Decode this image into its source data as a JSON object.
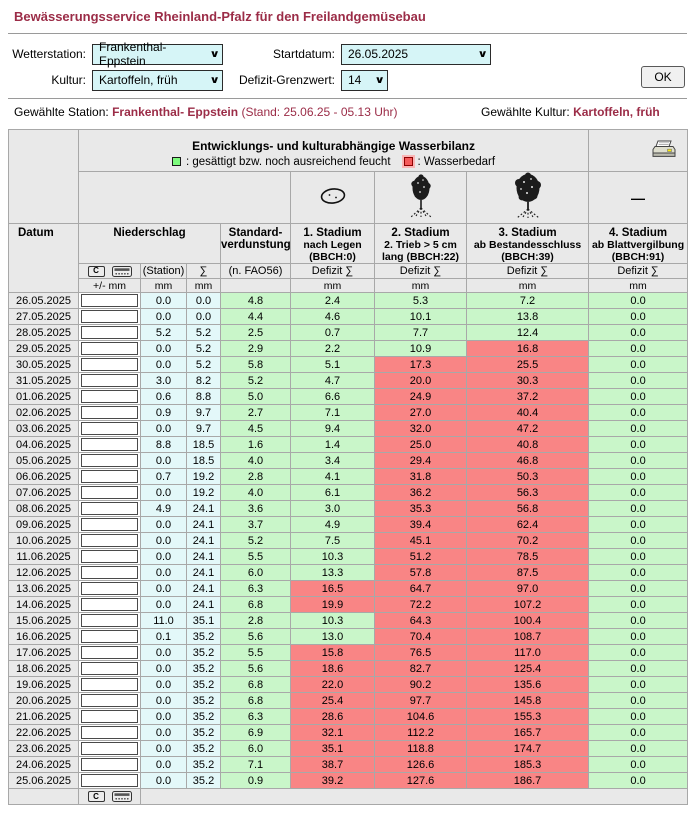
{
  "page": {
    "title": "Bewässerungsservice Rheinland-Pfalz für den Freilandgemüsebau"
  },
  "form": {
    "wetterstation_label": "Wetterstation:",
    "wetterstation_value": "Frankenthal- Eppstein",
    "startdatum_label": "Startdatum:",
    "startdatum_value": "26.05.2025",
    "kultur_label": "Kultur:",
    "kultur_value": "Kartoffeln, früh",
    "defizit_label": "Defizit-Grenzwert:",
    "defizit_value": "14",
    "ok_label": "OK"
  },
  "status": {
    "station_label": "Gewählte Station:",
    "station_value": "Frankenthal- Eppstein",
    "station_stand": "(Stand: 25.06.25 - 05.13 Uhr)",
    "kultur_label": "Gewählte Kultur:",
    "kultur_value": "Kartoffeln, früh"
  },
  "table": {
    "title": "Entwicklungs- und kulturabhängige Wasserbilanz",
    "legend_green": ": gesättigt bzw. noch ausreichend feucht",
    "legend_red": ": Wasserbedarf",
    "col_datum": "Datum",
    "col_niederschlag": "Niederschlag",
    "col_standard_l1": "Standard-",
    "col_standard_l2": "verdunstung",
    "stadium1": {
      "title": "1. Stadium",
      "sub": "nach Legen (BBCH:0)"
    },
    "stadium2": {
      "title": "2. Stadium",
      "sub": "2. Trieb > 5 cm lang (BBCH:22)"
    },
    "stadium3": {
      "title": "3. Stadium",
      "sub": "ab Bestandesschluss (BBCH:39)"
    },
    "stadium4": {
      "title": "4. Stadium",
      "sub": "ab Blattvergilbung (BBCH:91)"
    },
    "sub_station": "(Station)",
    "sub_sum": "∑",
    "sub_fao": "(n. FAO56)",
    "sub_defizit": "Defizit ∑",
    "unit_plusminus": "+/- mm",
    "unit_mm": "mm",
    "clear_button": "C",
    "dash": "—",
    "colors": {
      "green": "#c9f6c9",
      "red": "#f98585",
      "cyan": "#e3f8f9",
      "header": "#e9e9e9",
      "maroon": "#9b2c47"
    },
    "rows": [
      {
        "date": "26.05.2025",
        "station": "0.0",
        "sum": "0.0",
        "fao": "4.8",
        "s": [
          [
            "2.4",
            "g"
          ],
          [
            "5.3",
            "g"
          ],
          [
            "7.2",
            "g"
          ],
          [
            "0.0",
            "g"
          ]
        ]
      },
      {
        "date": "27.05.2025",
        "station": "0.0",
        "sum": "0.0",
        "fao": "4.4",
        "s": [
          [
            "4.6",
            "g"
          ],
          [
            "10.1",
            "g"
          ],
          [
            "13.8",
            "g"
          ],
          [
            "0.0",
            "g"
          ]
        ]
      },
      {
        "date": "28.05.2025",
        "station": "5.2",
        "sum": "5.2",
        "fao": "2.5",
        "s": [
          [
            "0.7",
            "g"
          ],
          [
            "7.7",
            "g"
          ],
          [
            "12.4",
            "g"
          ],
          [
            "0.0",
            "g"
          ]
        ]
      },
      {
        "date": "29.05.2025",
        "station": "0.0",
        "sum": "5.2",
        "fao": "2.9",
        "s": [
          [
            "2.2",
            "g"
          ],
          [
            "10.9",
            "g"
          ],
          [
            "16.8",
            "r"
          ],
          [
            "0.0",
            "g"
          ]
        ]
      },
      {
        "date": "30.05.2025",
        "station": "0.0",
        "sum": "5.2",
        "fao": "5.8",
        "s": [
          [
            "5.1",
            "g"
          ],
          [
            "17.3",
            "r"
          ],
          [
            "25.5",
            "r"
          ],
          [
            "0.0",
            "g"
          ]
        ]
      },
      {
        "date": "31.05.2025",
        "station": "3.0",
        "sum": "8.2",
        "fao": "5.2",
        "s": [
          [
            "4.7",
            "g"
          ],
          [
            "20.0",
            "r"
          ],
          [
            "30.3",
            "r"
          ],
          [
            "0.0",
            "g"
          ]
        ]
      },
      {
        "date": "01.06.2025",
        "station": "0.6",
        "sum": "8.8",
        "fao": "5.0",
        "s": [
          [
            "6.6",
            "g"
          ],
          [
            "24.9",
            "r"
          ],
          [
            "37.2",
            "r"
          ],
          [
            "0.0",
            "g"
          ]
        ]
      },
      {
        "date": "02.06.2025",
        "station": "0.9",
        "sum": "9.7",
        "fao": "2.7",
        "s": [
          [
            "7.1",
            "g"
          ],
          [
            "27.0",
            "r"
          ],
          [
            "40.4",
            "r"
          ],
          [
            "0.0",
            "g"
          ]
        ]
      },
      {
        "date": "03.06.2025",
        "station": "0.0",
        "sum": "9.7",
        "fao": "4.5",
        "s": [
          [
            "9.4",
            "g"
          ],
          [
            "32.0",
            "r"
          ],
          [
            "47.2",
            "r"
          ],
          [
            "0.0",
            "g"
          ]
        ]
      },
      {
        "date": "04.06.2025",
        "station": "8.8",
        "sum": "18.5",
        "fao": "1.6",
        "s": [
          [
            "1.4",
            "g"
          ],
          [
            "25.0",
            "r"
          ],
          [
            "40.8",
            "r"
          ],
          [
            "0.0",
            "g"
          ]
        ]
      },
      {
        "date": "05.06.2025",
        "station": "0.0",
        "sum": "18.5",
        "fao": "4.0",
        "s": [
          [
            "3.4",
            "g"
          ],
          [
            "29.4",
            "r"
          ],
          [
            "46.8",
            "r"
          ],
          [
            "0.0",
            "g"
          ]
        ]
      },
      {
        "date": "06.06.2025",
        "station": "0.7",
        "sum": "19.2",
        "fao": "2.8",
        "s": [
          [
            "4.1",
            "g"
          ],
          [
            "31.8",
            "r"
          ],
          [
            "50.3",
            "r"
          ],
          [
            "0.0",
            "g"
          ]
        ]
      },
      {
        "date": "07.06.2025",
        "station": "0.0",
        "sum": "19.2",
        "fao": "4.0",
        "s": [
          [
            "6.1",
            "g"
          ],
          [
            "36.2",
            "r"
          ],
          [
            "56.3",
            "r"
          ],
          [
            "0.0",
            "g"
          ]
        ]
      },
      {
        "date": "08.06.2025",
        "station": "4.9",
        "sum": "24.1",
        "fao": "3.6",
        "s": [
          [
            "3.0",
            "g"
          ],
          [
            "35.3",
            "r"
          ],
          [
            "56.8",
            "r"
          ],
          [
            "0.0",
            "g"
          ]
        ]
      },
      {
        "date": "09.06.2025",
        "station": "0.0",
        "sum": "24.1",
        "fao": "3.7",
        "s": [
          [
            "4.9",
            "g"
          ],
          [
            "39.4",
            "r"
          ],
          [
            "62.4",
            "r"
          ],
          [
            "0.0",
            "g"
          ]
        ]
      },
      {
        "date": "10.06.2025",
        "station": "0.0",
        "sum": "24.1",
        "fao": "5.2",
        "s": [
          [
            "7.5",
            "g"
          ],
          [
            "45.1",
            "r"
          ],
          [
            "70.2",
            "r"
          ],
          [
            "0.0",
            "g"
          ]
        ]
      },
      {
        "date": "11.06.2025",
        "station": "0.0",
        "sum": "24.1",
        "fao": "5.5",
        "s": [
          [
            "10.3",
            "g"
          ],
          [
            "51.2",
            "r"
          ],
          [
            "78.5",
            "r"
          ],
          [
            "0.0",
            "g"
          ]
        ]
      },
      {
        "date": "12.06.2025",
        "station": "0.0",
        "sum": "24.1",
        "fao": "6.0",
        "s": [
          [
            "13.3",
            "g"
          ],
          [
            "57.8",
            "r"
          ],
          [
            "87.5",
            "r"
          ],
          [
            "0.0",
            "g"
          ]
        ]
      },
      {
        "date": "13.06.2025",
        "station": "0.0",
        "sum": "24.1",
        "fao": "6.3",
        "s": [
          [
            "16.5",
            "r"
          ],
          [
            "64.7",
            "r"
          ],
          [
            "97.0",
            "r"
          ],
          [
            "0.0",
            "g"
          ]
        ]
      },
      {
        "date": "14.06.2025",
        "station": "0.0",
        "sum": "24.1",
        "fao": "6.8",
        "s": [
          [
            "19.9",
            "r"
          ],
          [
            "72.2",
            "r"
          ],
          [
            "107.2",
            "r"
          ],
          [
            "0.0",
            "g"
          ]
        ]
      },
      {
        "date": "15.06.2025",
        "station": "11.0",
        "sum": "35.1",
        "fao": "2.8",
        "s": [
          [
            "10.3",
            "g"
          ],
          [
            "64.3",
            "r"
          ],
          [
            "100.4",
            "r"
          ],
          [
            "0.0",
            "g"
          ]
        ]
      },
      {
        "date": "16.06.2025",
        "station": "0.1",
        "sum": "35.2",
        "fao": "5.6",
        "s": [
          [
            "13.0",
            "g"
          ],
          [
            "70.4",
            "r"
          ],
          [
            "108.7",
            "r"
          ],
          [
            "0.0",
            "g"
          ]
        ]
      },
      {
        "date": "17.06.2025",
        "station": "0.0",
        "sum": "35.2",
        "fao": "5.5",
        "s": [
          [
            "15.8",
            "r"
          ],
          [
            "76.5",
            "r"
          ],
          [
            "117.0",
            "r"
          ],
          [
            "0.0",
            "g"
          ]
        ]
      },
      {
        "date": "18.06.2025",
        "station": "0.0",
        "sum": "35.2",
        "fao": "5.6",
        "s": [
          [
            "18.6",
            "r"
          ],
          [
            "82.7",
            "r"
          ],
          [
            "125.4",
            "r"
          ],
          [
            "0.0",
            "g"
          ]
        ]
      },
      {
        "date": "19.06.2025",
        "station": "0.0",
        "sum": "35.2",
        "fao": "6.8",
        "s": [
          [
            "22.0",
            "r"
          ],
          [
            "90.2",
            "r"
          ],
          [
            "135.6",
            "r"
          ],
          [
            "0.0",
            "g"
          ]
        ]
      },
      {
        "date": "20.06.2025",
        "station": "0.0",
        "sum": "35.2",
        "fao": "6.8",
        "s": [
          [
            "25.4",
            "r"
          ],
          [
            "97.7",
            "r"
          ],
          [
            "145.8",
            "r"
          ],
          [
            "0.0",
            "g"
          ]
        ]
      },
      {
        "date": "21.06.2025",
        "station": "0.0",
        "sum": "35.2",
        "fao": "6.3",
        "s": [
          [
            "28.6",
            "r"
          ],
          [
            "104.6",
            "r"
          ],
          [
            "155.3",
            "r"
          ],
          [
            "0.0",
            "g"
          ]
        ]
      },
      {
        "date": "22.06.2025",
        "station": "0.0",
        "sum": "35.2",
        "fao": "6.9",
        "s": [
          [
            "32.1",
            "r"
          ],
          [
            "112.2",
            "r"
          ],
          [
            "165.7",
            "r"
          ],
          [
            "0.0",
            "g"
          ]
        ]
      },
      {
        "date": "23.06.2025",
        "station": "0.0",
        "sum": "35.2",
        "fao": "6.0",
        "s": [
          [
            "35.1",
            "r"
          ],
          [
            "118.8",
            "r"
          ],
          [
            "174.7",
            "r"
          ],
          [
            "0.0",
            "g"
          ]
        ]
      },
      {
        "date": "24.06.2025",
        "station": "0.0",
        "sum": "35.2",
        "fao": "7.1",
        "s": [
          [
            "38.7",
            "r"
          ],
          [
            "126.6",
            "r"
          ],
          [
            "185.3",
            "r"
          ],
          [
            "0.0",
            "g"
          ]
        ]
      },
      {
        "date": "25.06.2025",
        "station": "0.0",
        "sum": "35.2",
        "fao": "0.9",
        "s": [
          [
            "39.2",
            "r"
          ],
          [
            "127.6",
            "r"
          ],
          [
            "186.7",
            "r"
          ],
          [
            "0.0",
            "g"
          ]
        ]
      }
    ]
  }
}
